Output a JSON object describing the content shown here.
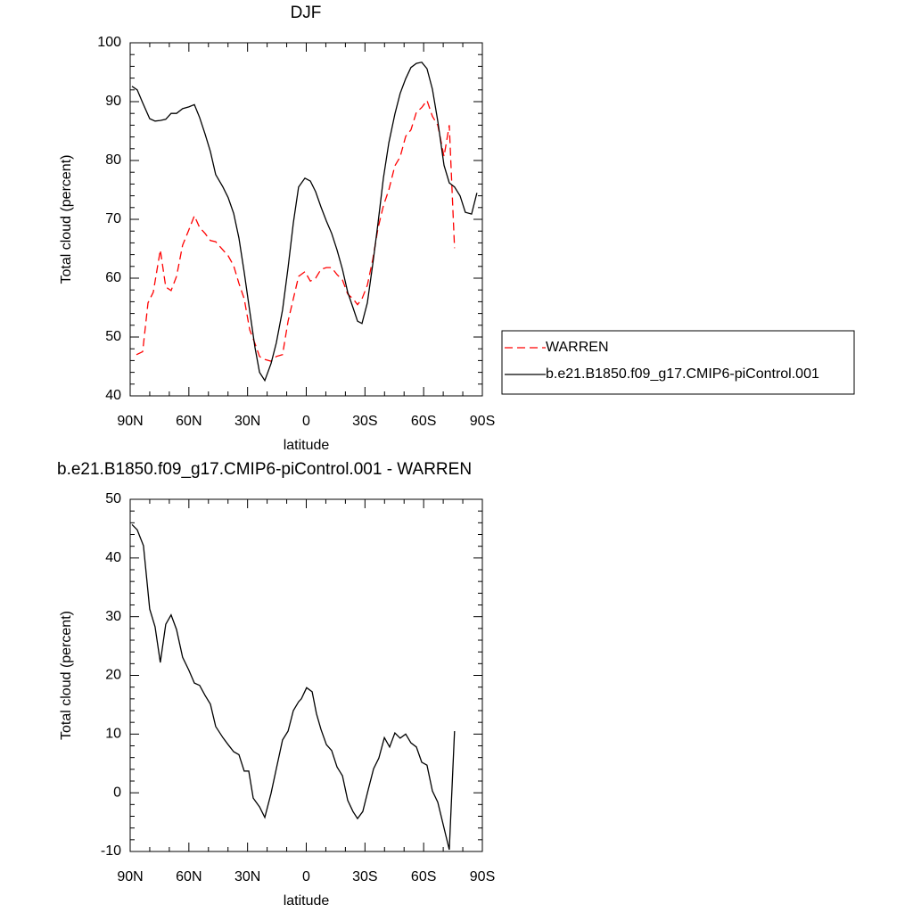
{
  "chart_data": [
    {
      "type": "line",
      "title": "DJF",
      "xlabel": "latitude",
      "ylabel": "Total cloud (percent)",
      "xlim": [
        90,
        -90
      ],
      "xticks": [
        {
          "value": 90,
          "label": "90N"
        },
        {
          "value": 60,
          "label": "60N"
        },
        {
          "value": 30,
          "label": "30N"
        },
        0,
        {
          "value": -30,
          "label": "30S"
        },
        {
          "value": -60,
          "label": "60S"
        },
        {
          "value": -90,
          "label": "90S"
        }
      ],
      "ylim": [
        40,
        100
      ],
      "yticks": [
        40,
        50,
        60,
        70,
        80,
        90,
        100
      ],
      "legend": "right",
      "series": [
        {
          "name": "WARREN",
          "color": "#ff0000",
          "linestyle": "dashed",
          "x": [
            86.8,
            83.6,
            80.9,
            78.2,
            74.6,
            71.8,
            69.1,
            66.3,
            63.2,
            60.0,
            57.2,
            54.5,
            51.7,
            49.0,
            46.3,
            42.6,
            39.9,
            37.1,
            34.4,
            31.7,
            28.9,
            26.2,
            23.9,
            21.2,
            18.0,
            15.3,
            12.1,
            9.3,
            6.6,
            3.9,
            0.7,
            -2.1,
            -4.8,
            -7.5,
            -10.3,
            -13.0,
            -15.7,
            -18.5,
            -21.2,
            -23.9,
            -26.2,
            -28.5,
            -31.2,
            -34.0,
            -36.7,
            -39.4,
            -42.2,
            -45.3,
            -48.0,
            -50.8,
            -53.5,
            -56.3,
            -59.0,
            -61.7,
            -64.5,
            -67.2,
            -70.4,
            -73.1,
            -75.8
          ],
          "values": [
            47.0,
            47.5,
            55.8,
            57.6,
            64.8,
            58.5,
            57.9,
            60.3,
            65.6,
            68.2,
            70.6,
            68.6,
            67.6,
            66.4,
            66.2,
            64.8,
            63.8,
            62.1,
            59.1,
            56.5,
            51.2,
            48.9,
            46.7,
            46.2,
            45.9,
            46.7,
            47.0,
            52.7,
            56.5,
            60.3,
            61.1,
            59.5,
            60.0,
            61.5,
            61.8,
            61.8,
            60.6,
            59.7,
            57.3,
            56.5,
            55.5,
            56.5,
            58.8,
            63.2,
            68.5,
            72.3,
            75.0,
            79.1,
            80.6,
            84.1,
            85.2,
            88.2,
            89.0,
            90.2,
            87.5,
            86.0,
            80.7,
            86.0,
            65.1
          ]
        },
        {
          "name": "b.e21.B1850.f09_g17.CMIP6-piControl.001",
          "color": "#000000",
          "linestyle": "solid",
          "x": [
            89.1,
            86.4,
            83.6,
            80.0,
            77.3,
            74.6,
            71.8,
            69.1,
            66.3,
            63.2,
            60.0,
            57.2,
            54.5,
            51.7,
            49.0,
            46.3,
            42.6,
            39.9,
            37.1,
            34.4,
            31.7,
            28.9,
            26.2,
            23.9,
            21.2,
            18.0,
            15.3,
            12.1,
            9.3,
            6.6,
            3.9,
            0.7,
            -2.1,
            -4.8,
            -7.5,
            -10.3,
            -13.0,
            -15.7,
            -18.5,
            -21.2,
            -23.9,
            -26.2,
            -28.5,
            -31.2,
            -34.0,
            -36.7,
            -39.4,
            -42.2,
            -45.3,
            -48.0,
            -50.8,
            -53.5,
            -56.3,
            -59.0,
            -61.7,
            -64.5,
            -67.2,
            -70.4,
            -73.1,
            -75.8,
            -78.6,
            -81.3,
            -84.5,
            -87.2
          ],
          "values": [
            92.6,
            92.0,
            89.8,
            87.1,
            86.7,
            86.8,
            87.0,
            88.0,
            88.0,
            88.8,
            89.1,
            89.5,
            87.3,
            84.5,
            81.5,
            77.6,
            75.5,
            73.7,
            71.0,
            66.8,
            61.0,
            54.4,
            48.2,
            44.0,
            42.6,
            45.5,
            49.0,
            54.6,
            61.8,
            69.4,
            75.5,
            77.0,
            76.5,
            74.7,
            72.1,
            69.7,
            67.6,
            64.8,
            61.5,
            57.6,
            55.0,
            52.7,
            52.3,
            55.8,
            62.4,
            69.4,
            77.0,
            83.0,
            87.9,
            91.4,
            93.9,
            95.8,
            96.5,
            96.7,
            95.6,
            92.1,
            86.7,
            79.2,
            76.2,
            75.5,
            74.0,
            71.2,
            70.9,
            74.5
          ]
        }
      ]
    },
    {
      "type": "line",
      "title": "b.e21.B1850.f09_g17.CMIP6-piControl.001 - WARREN",
      "xlabel": "latitude",
      "ylabel": "Total cloud (percent)",
      "xlim": [
        90,
        -90
      ],
      "xticks": [
        {
          "value": 90,
          "label": "90N"
        },
        {
          "value": 60,
          "label": "60N"
        },
        {
          "value": 30,
          "label": "30N"
        },
        0,
        {
          "value": -30,
          "label": "30S"
        },
        {
          "value": -60,
          "label": "60S"
        },
        {
          "value": -90,
          "label": "90S"
        }
      ],
      "ylim": [
        -10,
        50
      ],
      "yticks": [
        -10,
        0,
        10,
        20,
        30,
        40,
        50
      ],
      "color": "#000000",
      "x": [
        89.1,
        86.4,
        83.2,
        80.0,
        77.3,
        74.6,
        71.8,
        69.1,
        66.3,
        63.2,
        60.0,
        57.2,
        54.5,
        51.7,
        49.0,
        46.3,
        42.6,
        39.9,
        37.1,
        34.4,
        31.7,
        29.4,
        27.1,
        23.9,
        21.2,
        18.0,
        15.3,
        12.1,
        9.3,
        6.6,
        3.9,
        2.5,
        -0.2,
        -3.0,
        -5.2,
        -7.5,
        -10.3,
        -13.0,
        -15.7,
        -18.5,
        -21.2,
        -23.9,
        -26.2,
        -28.9,
        -31.7,
        -34.4,
        -37.1,
        -39.9,
        -42.6,
        -45.3,
        -48.0,
        -50.8,
        -53.5,
        -56.3,
        -59.0,
        -61.7,
        -64.5,
        -67.2,
        -73.1,
        -75.8
      ],
      "values": [
        45.7,
        44.8,
        42.1,
        31.3,
        28.3,
        22.2,
        28.7,
        30.3,
        27.8,
        23.1,
        20.9,
        18.7,
        18.3,
        16.6,
        15.1,
        11.3,
        9.4,
        8.2,
        7.0,
        6.5,
        3.7,
        3.7,
        -0.9,
        -2.4,
        -4.2,
        -0.1,
        4.1,
        9.0,
        10.5,
        14.0,
        15.5,
        16.0,
        17.9,
        17.2,
        13.5,
        10.8,
        8.2,
        7.2,
        4.4,
        2.9,
        -1.3,
        -3.2,
        -4.4,
        -3.2,
        0.6,
        4.1,
        5.9,
        9.4,
        7.8,
        10.2,
        9.3,
        10.0,
        8.5,
        7.8,
        5.2,
        4.7,
        0.3,
        -1.6,
        -9.7,
        10.5
      ]
    }
  ]
}
